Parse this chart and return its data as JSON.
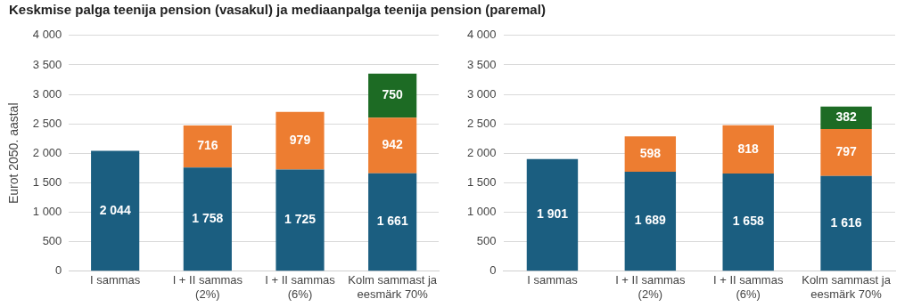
{
  "chart_data": [
    {
      "type": "bar",
      "title": "Keskmise palga teenija pension (vasakul) ja mediaanpalga teenija pension (paremal)",
      "ylabel": "Eurot 2050. aastal",
      "stacked": true,
      "grid": "y",
      "categories": [
        "I sammas",
        "I + II sammas (2%)",
        "I + II sammas (6%)",
        "Kolm sammast ja eesmärk 70%"
      ],
      "ylim": [
        0,
        4000
      ],
      "yticks": [
        {
          "value": 0,
          "label": "0"
        },
        {
          "value": 500,
          "label": "500"
        },
        {
          "value": 1000,
          "label": "1 000"
        },
        {
          "value": 1500,
          "label": "1 500"
        },
        {
          "value": 2000,
          "label": "2 000"
        },
        {
          "value": 2500,
          "label": "2 500"
        },
        {
          "value": 3000,
          "label": "3 000"
        },
        {
          "value": 3500,
          "label": "3 500"
        },
        {
          "value": 4000,
          "label": "4 000"
        }
      ],
      "series": [
        {
          "color": "#1b5e80",
          "values": [
            2044,
            1758,
            1725,
            1661
          ],
          "value_labels": [
            "2 044",
            "1 758",
            "1 725",
            "1 661"
          ]
        },
        {
          "color": "#ed7d31",
          "values": [
            null,
            716,
            979,
            942
          ],
          "value_labels": [
            null,
            "716",
            "979",
            "942"
          ]
        },
        {
          "color": "#1d6b24",
          "values": [
            null,
            null,
            null,
            750
          ],
          "value_labels": [
            null,
            null,
            null,
            "750"
          ]
        }
      ]
    },
    {
      "type": "bar",
      "stacked": true,
      "grid": "y",
      "categories": [
        "I sammas",
        "I + II sammas (2%)",
        "I + II sammas (6%)",
        "Kolm sammast ja eesmärk 70%"
      ],
      "ylim": [
        0,
        4000
      ],
      "yticks": [
        {
          "value": 0,
          "label": "0"
        },
        {
          "value": 500,
          "label": "500"
        },
        {
          "value": 1000,
          "label": "1 000"
        },
        {
          "value": 1500,
          "label": "1 500"
        },
        {
          "value": 2000,
          "label": "2 000"
        },
        {
          "value": 2500,
          "label": "2 500"
        },
        {
          "value": 3000,
          "label": "3 000"
        },
        {
          "value": 3500,
          "label": "3 500"
        },
        {
          "value": 4000,
          "label": "4 000"
        }
      ],
      "series": [
        {
          "color": "#1b5e80",
          "values": [
            1901,
            1689,
            1658,
            1616
          ],
          "value_labels": [
            "1 901",
            "1 689",
            "1 658",
            "1 616"
          ]
        },
        {
          "color": "#ed7d31",
          "values": [
            null,
            598,
            818,
            797
          ],
          "value_labels": [
            null,
            "598",
            "818",
            "797"
          ]
        },
        {
          "color": "#1d6b24",
          "values": [
            null,
            null,
            null,
            382
          ],
          "value_labels": [
            null,
            null,
            null,
            "382"
          ]
        }
      ]
    }
  ]
}
